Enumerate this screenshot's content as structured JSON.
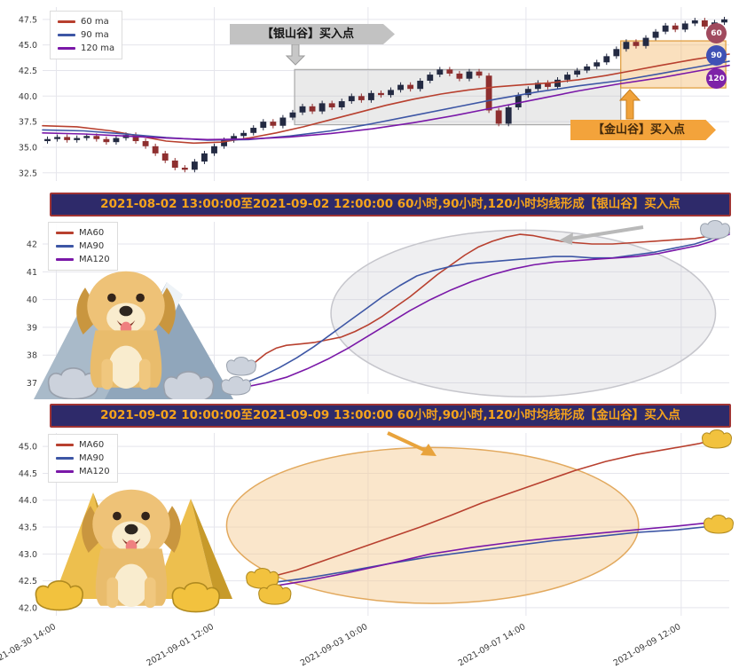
{
  "colors": {
    "background": "#ffffff",
    "grid": "#e5e5ec",
    "banner_bg": "#2e2a6a",
    "banner_text": "#f5a31c",
    "banner_border": "#a03434",
    "silver": "#c9cfda",
    "gold": "#f2c23e"
  },
  "chart_data": [
    {
      "type": "candlestick",
      "ylim": [
        31.7,
        48.7
      ],
      "yticks": {
        "values": [
          32.5,
          35,
          37.5,
          40,
          42.5,
          45,
          47.5
        ],
        "labels": [
          "32.5",
          "35.0",
          "37.5",
          "40.0",
          "42.5",
          "45.0",
          "47.5"
        ]
      },
      "xgrid": [
        0.02,
        0.25,
        0.474,
        0.704,
        0.93
      ],
      "legend": [
        {
          "label": "60 ma",
          "color": "#b8402f"
        },
        {
          "label": "90 ma",
          "color": "#3d56a5"
        },
        {
          "label": "120 ma",
          "color": "#7a18a8"
        }
      ],
      "badges": [
        {
          "label": "60",
          "color": "#a04a5e"
        },
        {
          "label": "90",
          "color": "#3f51b5"
        },
        {
          "label": "120",
          "color": "#7d22a8"
        }
      ],
      "annotations": {
        "silver_valley_label": "【银山谷】买入点",
        "gold_valley_label": "【金山谷】买入点"
      },
      "regions": [
        {
          "x0": 0.367,
          "x1": 0.842,
          "y0": 37.2,
          "y1": 42.6,
          "fill": "rgba(186,186,186,0.30)",
          "stroke": "#a9a9a9"
        },
        {
          "x0": 0.842,
          "x1": 0.995,
          "y0": 40.8,
          "y1": 45.4,
          "fill": "rgba(243,186,110,0.45)",
          "stroke": "#df9a37"
        }
      ],
      "candles": {
        "first_open": 35.6,
        "wick": 0.25,
        "up_color": "#232a42",
        "down_color": "#8e2f2f",
        "closes": [
          35.8,
          36.0,
          35.7,
          35.9,
          36.1,
          35.8,
          35.5,
          35.9,
          36.2,
          35.6,
          35.1,
          34.4,
          33.7,
          33.0,
          32.8,
          33.6,
          34.4,
          35.1,
          35.7,
          36.1,
          36.4,
          36.9,
          37.5,
          37.1,
          37.9,
          38.4,
          39.0,
          38.5,
          39.3,
          38.9,
          39.5,
          40.0,
          39.6,
          40.3,
          40.1,
          40.6,
          41.1,
          40.7,
          41.5,
          42.1,
          42.6,
          42.2,
          41.7,
          42.4,
          42.0,
          38.6,
          37.3,
          38.9,
          40.1,
          40.7,
          41.3,
          40.9,
          41.6,
          42.1,
          42.5,
          42.9,
          43.3,
          43.9,
          44.6,
          45.3,
          44.9,
          45.7,
          46.3,
          46.9,
          46.5,
          47.1,
          47.4,
          46.8,
          47.2,
          47.5
        ]
      },
      "series": [
        {
          "name": "60 ma",
          "color": "#b8402f",
          "points": [
            [
              0,
              37.1
            ],
            [
              0.05,
              37.0
            ],
            [
              0.1,
              36.6
            ],
            [
              0.14,
              36.1
            ],
            [
              0.18,
              35.6
            ],
            [
              0.22,
              35.4
            ],
            [
              0.26,
              35.5
            ],
            [
              0.3,
              35.9
            ],
            [
              0.34,
              36.4
            ],
            [
              0.38,
              37.0
            ],
            [
              0.42,
              37.7
            ],
            [
              0.46,
              38.4
            ],
            [
              0.5,
              39.1
            ],
            [
              0.54,
              39.7
            ],
            [
              0.58,
              40.2
            ],
            [
              0.62,
              40.6
            ],
            [
              0.66,
              40.9
            ],
            [
              0.7,
              41.1
            ],
            [
              0.74,
              41.3
            ],
            [
              0.78,
              41.6
            ],
            [
              0.82,
              42.0
            ],
            [
              0.86,
              42.5
            ],
            [
              0.9,
              43.0
            ],
            [
              0.95,
              43.6
            ],
            [
              1,
              44.1
            ]
          ]
        },
        {
          "name": "90 ma",
          "color": "#3d56a5",
          "points": [
            [
              0,
              36.7
            ],
            [
              0.06,
              36.6
            ],
            [
              0.12,
              36.3
            ],
            [
              0.18,
              35.95
            ],
            [
              0.24,
              35.7
            ],
            [
              0.3,
              35.75
            ],
            [
              0.36,
              36.1
            ],
            [
              0.42,
              36.6
            ],
            [
              0.48,
              37.3
            ],
            [
              0.54,
              38.1
            ],
            [
              0.6,
              38.9
            ],
            [
              0.66,
              39.7
            ],
            [
              0.72,
              40.4
            ],
            [
              0.78,
              41.0
            ],
            [
              0.84,
              41.5
            ],
            [
              0.9,
              42.2
            ],
            [
              0.95,
              42.8
            ],
            [
              1,
              43.4
            ]
          ]
        },
        {
          "name": "120 ma",
          "color": "#7a18a8",
          "points": [
            [
              0,
              36.4
            ],
            [
              0.06,
              36.3
            ],
            [
              0.12,
              36.1
            ],
            [
              0.18,
              35.9
            ],
            [
              0.24,
              35.75
            ],
            [
              0.3,
              35.8
            ],
            [
              0.36,
              36.0
            ],
            [
              0.42,
              36.35
            ],
            [
              0.48,
              36.8
            ],
            [
              0.54,
              37.4
            ],
            [
              0.6,
              38.1
            ],
            [
              0.66,
              38.9
            ],
            [
              0.72,
              39.7
            ],
            [
              0.78,
              40.5
            ],
            [
              0.84,
              41.2
            ],
            [
              0.9,
              41.8
            ],
            [
              0.95,
              42.4
            ],
            [
              1,
              43.0
            ]
          ]
        }
      ]
    },
    {
      "type": "line",
      "title": "2021-08-02 13:00:00至2021-09-02 12:00:00 60小时,90小时,120小时均线形成【银山谷】买入点",
      "ylim": [
        36.6,
        42.8
      ],
      "yticks": {
        "values": [
          37,
          38,
          39,
          40,
          41,
          42
        ],
        "labels": [
          "37",
          "38",
          "39",
          "40",
          "41",
          "42"
        ]
      },
      "xgrid": [
        0.02,
        0.25,
        0.474,
        0.704,
        0.93
      ],
      "legend": [
        {
          "label": "MA60",
          "color": "#b8402f"
        },
        {
          "label": "MA90",
          "color": "#3d56a5"
        },
        {
          "label": "MA120",
          "color": "#7a18a8"
        }
      ],
      "ellipses": [
        {
          "cx": 0.7,
          "cy": 39.5,
          "rx": 0.28,
          "ry": 3.0,
          "fill": "rgba(198,198,204,0.28)",
          "stroke": "#c6c6cc"
        }
      ],
      "series": [
        {
          "name": "MA60",
          "color": "#b8402f",
          "points": [
            [
              0.295,
              37.45
            ],
            [
              0.31,
              37.75
            ],
            [
              0.325,
              38.05
            ],
            [
              0.34,
              38.25
            ],
            [
              0.355,
              38.35
            ],
            [
              0.375,
              38.4
            ],
            [
              0.395,
              38.45
            ],
            [
              0.415,
              38.55
            ],
            [
              0.435,
              38.65
            ],
            [
              0.455,
              38.85
            ],
            [
              0.475,
              39.1
            ],
            [
              0.495,
              39.4
            ],
            [
              0.515,
              39.75
            ],
            [
              0.535,
              40.1
            ],
            [
              0.555,
              40.5
            ],
            [
              0.575,
              40.9
            ],
            [
              0.595,
              41.25
            ],
            [
              0.615,
              41.6
            ],
            [
              0.635,
              41.9
            ],
            [
              0.655,
              42.1
            ],
            [
              0.675,
              42.25
            ],
            [
              0.695,
              42.35
            ],
            [
              0.715,
              42.3
            ],
            [
              0.735,
              42.2
            ],
            [
              0.755,
              42.1
            ],
            [
              0.775,
              42.05
            ],
            [
              0.8,
              42.0
            ],
            [
              0.83,
              42.0
            ],
            [
              0.86,
              42.05
            ],
            [
              0.89,
              42.1
            ],
            [
              0.92,
              42.15
            ],
            [
              0.95,
              42.2
            ],
            [
              0.975,
              42.3
            ],
            [
              1,
              42.45
            ]
          ]
        },
        {
          "name": "MA90",
          "color": "#3d56a5",
          "points": [
            [
              0.295,
              37.0
            ],
            [
              0.32,
              37.25
            ],
            [
              0.345,
              37.55
            ],
            [
              0.37,
              37.9
            ],
            [
              0.395,
              38.3
            ],
            [
              0.42,
              38.75
            ],
            [
              0.445,
              39.2
            ],
            [
              0.47,
              39.65
            ],
            [
              0.495,
              40.1
            ],
            [
              0.52,
              40.5
            ],
            [
              0.545,
              40.85
            ],
            [
              0.57,
              41.05
            ],
            [
              0.595,
              41.2
            ],
            [
              0.62,
              41.3
            ],
            [
              0.645,
              41.35
            ],
            [
              0.67,
              41.4
            ],
            [
              0.695,
              41.45
            ],
            [
              0.72,
              41.5
            ],
            [
              0.745,
              41.55
            ],
            [
              0.77,
              41.55
            ],
            [
              0.8,
              41.5
            ],
            [
              0.83,
              41.5
            ],
            [
              0.86,
              41.6
            ],
            [
              0.89,
              41.7
            ],
            [
              0.92,
              41.85
            ],
            [
              0.95,
              42.0
            ],
            [
              0.975,
              42.2
            ],
            [
              1,
              42.4
            ]
          ]
        },
        {
          "name": "MA120",
          "color": "#7a18a8",
          "points": [
            [
              0.295,
              36.85
            ],
            [
              0.325,
              37.0
            ],
            [
              0.355,
              37.2
            ],
            [
              0.385,
              37.5
            ],
            [
              0.415,
              37.85
            ],
            [
              0.445,
              38.25
            ],
            [
              0.475,
              38.7
            ],
            [
              0.505,
              39.15
            ],
            [
              0.535,
              39.6
            ],
            [
              0.565,
              40.0
            ],
            [
              0.595,
              40.35
            ],
            [
              0.625,
              40.65
            ],
            [
              0.655,
              40.9
            ],
            [
              0.685,
              41.1
            ],
            [
              0.715,
              41.25
            ],
            [
              0.745,
              41.35
            ],
            [
              0.775,
              41.4
            ],
            [
              0.805,
              41.45
            ],
            [
              0.835,
              41.5
            ],
            [
              0.865,
              41.55
            ],
            [
              0.895,
              41.65
            ],
            [
              0.925,
              41.8
            ],
            [
              0.955,
              41.95
            ],
            [
              0.975,
              42.1
            ],
            [
              1,
              42.35
            ]
          ]
        }
      ]
    },
    {
      "type": "line",
      "title": "2021-09-02 10:00:00至2021-09-09 13:00:00 60小时,90小时,120小时均线形成【金山谷】买入点",
      "ylim": [
        41.85,
        45.25
      ],
      "yticks": {
        "values": [
          42,
          42.5,
          43,
          43.5,
          44,
          44.5,
          45
        ],
        "labels": [
          "42.0",
          "42.5",
          "43.0",
          "43.5",
          "44.0",
          "44.5",
          "45.0"
        ]
      },
      "xgrid": [
        0.02,
        0.25,
        0.474,
        0.704,
        0.93
      ],
      "xticks": {
        "fractions": [
          0.02,
          0.25,
          0.474,
          0.704,
          0.93
        ],
        "labels": [
          "2021-08-30 14:00",
          "2021-09-01 12:00",
          "2021-09-03 10:00",
          "2021-09-07 14:00",
          "2021-09-09 12:00"
        ]
      },
      "legend": [
        {
          "label": "MA60",
          "color": "#b8402f"
        },
        {
          "label": "MA90",
          "color": "#3d56a5"
        },
        {
          "label": "MA120",
          "color": "#7a18a8"
        }
      ],
      "ellipses": [
        {
          "cx": 0.568,
          "cy": 43.53,
          "rx": 0.3,
          "ry": 1.45,
          "fill": "rgba(246,205,152,0.50)",
          "stroke": "#e2a95e"
        }
      ],
      "series": [
        {
          "name": "MA60",
          "color": "#b8402f",
          "points": [
            [
              0.325,
              42.55
            ],
            [
              0.37,
              42.7
            ],
            [
              0.415,
              42.9
            ],
            [
              0.46,
              43.1
            ],
            [
              0.505,
              43.3
            ],
            [
              0.55,
              43.5
            ],
            [
              0.595,
              43.72
            ],
            [
              0.64,
              43.95
            ],
            [
              0.685,
              44.15
            ],
            [
              0.73,
              44.35
            ],
            [
              0.775,
              44.55
            ],
            [
              0.82,
              44.72
            ],
            [
              0.865,
              44.85
            ],
            [
              0.91,
              44.95
            ],
            [
              0.955,
              45.05
            ],
            [
              1,
              45.2
            ]
          ]
        },
        {
          "name": "MA90",
          "color": "#3d56a5",
          "points": [
            [
              0.325,
              42.45
            ],
            [
              0.385,
              42.55
            ],
            [
              0.445,
              42.68
            ],
            [
              0.505,
              42.82
            ],
            [
              0.565,
              42.95
            ],
            [
              0.625,
              43.05
            ],
            [
              0.685,
              43.15
            ],
            [
              0.745,
              43.25
            ],
            [
              0.805,
              43.32
            ],
            [
              0.865,
              43.4
            ],
            [
              0.925,
              43.45
            ],
            [
              1,
              43.55
            ]
          ]
        },
        {
          "name": "MA120",
          "color": "#7a18a8",
          "points": [
            [
              0.325,
              42.38
            ],
            [
              0.385,
              42.5
            ],
            [
              0.445,
              42.65
            ],
            [
              0.505,
              42.82
            ],
            [
              0.565,
              43.0
            ],
            [
              0.625,
              43.12
            ],
            [
              0.685,
              43.22
            ],
            [
              0.745,
              43.3
            ],
            [
              0.805,
              43.38
            ],
            [
              0.865,
              43.45
            ],
            [
              0.925,
              43.52
            ],
            [
              1,
              43.62
            ]
          ]
        }
      ]
    }
  ]
}
